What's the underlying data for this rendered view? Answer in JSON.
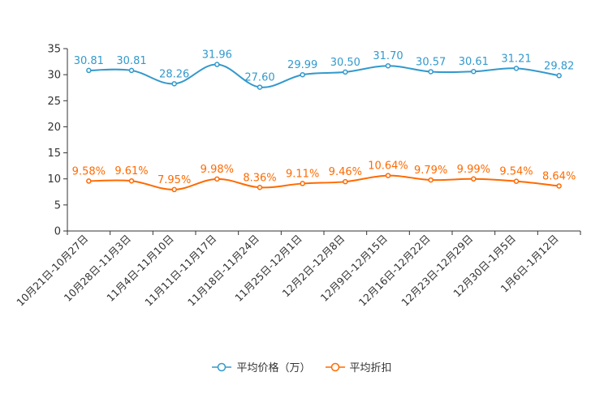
{
  "chart_data": {
    "type": "line",
    "categories": [
      "10月21日-10月27日",
      "10月28日-11月3日",
      "11月4日-11月10日",
      "11月11日-11月17日",
      "11月18日-11月24日",
      "11月25日-12月1日",
      "12月2日-12月8日",
      "12月9日-12月15日",
      "12月16日-12月22日",
      "12月23日-12月29日",
      "12月30日-1月5日",
      "1月6日-1月12日"
    ],
    "ylim": [
      0,
      35
    ],
    "yticks": [
      0,
      5,
      10,
      15,
      20,
      25,
      30,
      35
    ],
    "grid": false,
    "series": [
      {
        "name": "平均价格（万）",
        "color": "#3399cc",
        "values": [
          30.81,
          30.81,
          28.26,
          31.96,
          27.6,
          29.99,
          30.5,
          31.7,
          30.57,
          30.61,
          31.21,
          29.82
        ],
        "labels": [
          "30.81",
          "30.81",
          "28.26",
          "31.96",
          "27.60",
          "29.99",
          "30.50",
          "31.70",
          "30.57",
          "30.61",
          "31.21",
          "29.82"
        ]
      },
      {
        "name": "平均折扣",
        "color": "#ff6a00",
        "values": [
          9.58,
          9.61,
          7.95,
          9.98,
          8.36,
          9.11,
          9.46,
          10.64,
          9.79,
          9.99,
          9.54,
          8.64
        ],
        "labels": [
          "9.58%",
          "9.61%",
          "7.95%",
          "9.98%",
          "8.36%",
          "9.11%",
          "9.46%",
          "10.64%",
          "9.79%",
          "9.99%",
          "9.54%",
          "8.64%"
        ]
      }
    ],
    "legend_position": "bottom-center"
  }
}
